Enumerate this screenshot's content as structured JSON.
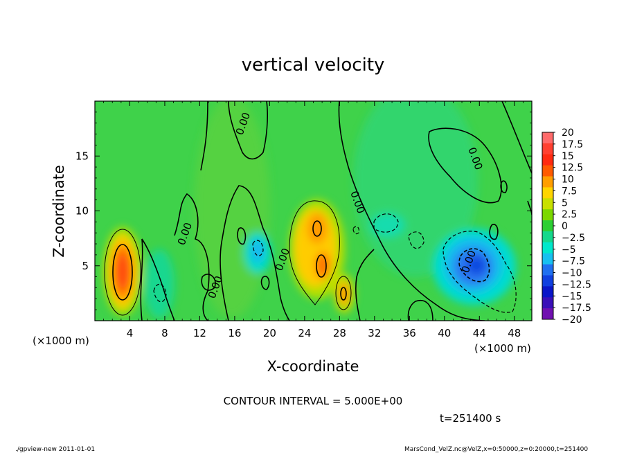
{
  "chart_data": {
    "type": "heatmap",
    "title": "vertical velocity",
    "xlabel": "X-coordinate",
    "ylabel": "Z-coordinate",
    "x_unit": "(×1000 m)",
    "x_unit_right": "(×1000 m)",
    "xlim": [
      0,
      50
    ],
    "ylim": [
      0,
      20
    ],
    "x_ticks": [
      "4",
      "8",
      "12",
      "16",
      "20",
      "24",
      "28",
      "32",
      "36",
      "40",
      "44",
      "48"
    ],
    "y_ticks": [
      "5",
      "10",
      "15"
    ],
    "x_tick_values": [
      4,
      8,
      12,
      16,
      20,
      24,
      28,
      32,
      36,
      40,
      44,
      48
    ],
    "y_tick_values": [
      5,
      10,
      15
    ],
    "contour_interval_text": "CONTOUR INTERVAL = 5.000E+00",
    "time_text": "t=251400 s",
    "contour_labels": [
      "0.00",
      "0.00",
      "0.00",
      "0.00",
      "0.00",
      "0.00",
      "0.00"
    ],
    "colorbar": {
      "labels": [
        "20",
        "17.5",
        "15",
        "12.5",
        "10",
        "7.5",
        "5",
        "2.5",
        "0",
        "−2.5",
        "−5",
        "−7.5",
        "−10",
        "−12.5",
        "−15",
        "−17.5",
        "−20"
      ],
      "values": [
        20,
        17.5,
        15,
        12.5,
        10,
        7.5,
        5,
        2.5,
        0,
        -2.5,
        -5,
        -7.5,
        -10,
        -12.5,
        -15,
        -17.5,
        -20
      ],
      "colors": [
        "#ff6a6a",
        "#ff4030",
        "#ff2a10",
        "#ff5a00",
        "#ff9e00",
        "#ffd500",
        "#c8e000",
        "#7cd800",
        "#2ccf34",
        "#14d88c",
        "#00e8cc",
        "#18c0f0",
        "#2070f0",
        "#1040e0",
        "#0a16c8",
        "#3a10b8",
        "#7010b0"
      ]
    },
    "features": [
      {
        "kind": "updraft",
        "x": 3.3,
        "z": 4.5,
        "peak": 12.5
      },
      {
        "kind": "updraft",
        "x": 24.3,
        "z": 7.5,
        "peak": 10
      },
      {
        "kind": "updraft",
        "x": 25.7,
        "z": 5.2,
        "peak": 12.5
      },
      {
        "kind": "updraft",
        "x": 28.6,
        "z": 2.7,
        "peak": 10
      },
      {
        "kind": "downdraft",
        "x": 43.4,
        "z": 5.0,
        "peak": -10
      },
      {
        "kind": "downdraft",
        "x": 18.5,
        "z": 6.0,
        "peak": -5
      }
    ]
  },
  "footer": {
    "left": "./gpview-new   2011-01-01",
    "right": "MarsCond_VelZ.nc@VelZ,x=0:50000,z=0:20000,t=251400"
  }
}
